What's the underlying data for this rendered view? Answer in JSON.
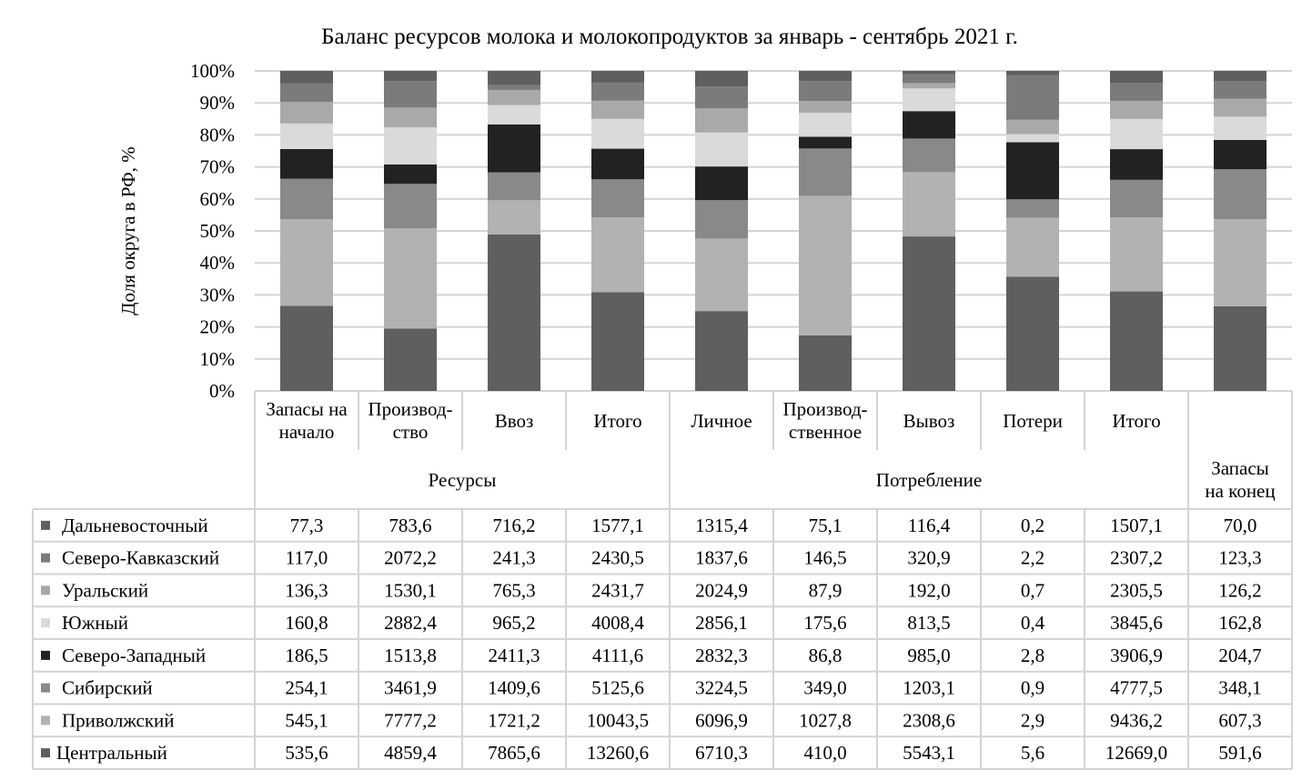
{
  "chart_data": {
    "type": "bar",
    "stacked": "percent",
    "title": "Баланс ресурсов молока и молокопродуктов за январь - сентябрь  2021 г.",
    "ylabel": "Доля округа в РФ, %",
    "ylim": [
      0,
      100
    ],
    "yticks": [
      "0%",
      "10%",
      "20%",
      "30%",
      "40%",
      "50%",
      "60%",
      "70%",
      "80%",
      "90%",
      "100%"
    ],
    "grid": true,
    "legend": "table-left",
    "categories": [
      [
        "Запасы на",
        "начало"
      ],
      [
        "Производ-",
        "ство"
      ],
      [
        "Ввоз"
      ],
      [
        "Итого"
      ],
      [
        "Личное"
      ],
      [
        "Производ-",
        "ственное"
      ],
      [
        "Вывоз"
      ],
      [
        "Потери"
      ],
      [
        "Итого"
      ],
      []
    ],
    "groups": [
      {
        "label": [
          "Ресурсы"
        ],
        "span": 4
      },
      {
        "label": [
          "Потребление"
        ],
        "span": 5
      },
      {
        "label": [
          "Запасы",
          "на конец"
        ],
        "span": 1
      }
    ],
    "series": [
      {
        "name": "Дальневосточный",
        "color": "#5f5f5f",
        "values": [
          77.3,
          783.6,
          716.2,
          1577.1,
          1315.4,
          75.1,
          116.4,
          0.2,
          1507.1,
          70.0
        ],
        "labels": [
          "77,3",
          "783,6",
          "716,2",
          "1577,1",
          "1315,4",
          "75,1",
          "116,4",
          "0,2",
          "1507,1",
          "70,0"
        ]
      },
      {
        "name": "Северо-Кавказский",
        "color": "#7b7b7b",
        "values": [
          117.0,
          2072.2,
          241.3,
          2430.5,
          1837.6,
          146.5,
          320.9,
          2.2,
          2307.2,
          123.3
        ],
        "labels": [
          "117,0",
          "2072,2",
          "241,3",
          "2430,5",
          "1837,6",
          "146,5",
          "320,9",
          "2,2",
          "2307,2",
          "123,3"
        ]
      },
      {
        "name": "Уральский",
        "color": "#a9a9a9",
        "values": [
          136.3,
          1530.1,
          765.3,
          2431.7,
          2024.9,
          87.9,
          192.0,
          0.7,
          2305.5,
          126.2
        ],
        "labels": [
          "136,3",
          "1530,1",
          "765,3",
          "2431,7",
          "2024,9",
          "87,9",
          "192,0",
          "0,7",
          "2305,5",
          "126,2"
        ]
      },
      {
        "name": "Южный",
        "color": "#dadada",
        "values": [
          160.8,
          2882.4,
          965.2,
          4008.4,
          2856.1,
          175.6,
          813.5,
          0.4,
          3845.6,
          162.8
        ],
        "labels": [
          "160,8",
          "2882,4",
          "965,2",
          "4008,4",
          "2856,1",
          "175,6",
          "813,5",
          "0,4",
          "3845,6",
          "162,8"
        ]
      },
      {
        "name": "Северо-Западный",
        "color": "#222222",
        "values": [
          186.5,
          1513.8,
          2411.3,
          4111.6,
          2832.3,
          86.8,
          985.0,
          2.8,
          3906.9,
          204.7
        ],
        "labels": [
          "186,5",
          "1513,8",
          "2411,3",
          "4111,6",
          "2832,3",
          "86,8",
          "985,0",
          "2,8",
          "3906,9",
          "204,7"
        ]
      },
      {
        "name": "Сибирский",
        "color": "#898989",
        "values": [
          254.1,
          3461.9,
          1409.6,
          5125.6,
          3224.5,
          349.0,
          1203.1,
          0.9,
          4777.5,
          348.1
        ],
        "labels": [
          "254,1",
          "3461,9",
          "1409,6",
          "5125,6",
          "3224,5",
          "349,0",
          "1203,1",
          "0,9",
          "4777,5",
          "348,1"
        ]
      },
      {
        "name": "Приволжский",
        "color": "#b2b2b2",
        "values": [
          545.1,
          7777.2,
          1721.2,
          10043.5,
          6096.9,
          1027.8,
          2308.6,
          2.9,
          9436.2,
          607.3
        ],
        "labels": [
          "545,1",
          "7777,2",
          "1721,2",
          "10043,5",
          "6096,9",
          "1027,8",
          "2308,6",
          "2,9",
          "9436,2",
          "607,3"
        ]
      },
      {
        "name": "Центральный",
        "color": "#5f5f5f",
        "values": [
          535.6,
          4859.4,
          7865.6,
          13260.6,
          6710.3,
          410.0,
          5543.1,
          5.6,
          12669.0,
          591.6
        ],
        "labels": [
          "535,6",
          "4859,4",
          "7865,6",
          "13260,6",
          "6710,3",
          "410,0",
          "5543,1",
          "5,6",
          "12669,0",
          "591,6"
        ]
      }
    ]
  }
}
